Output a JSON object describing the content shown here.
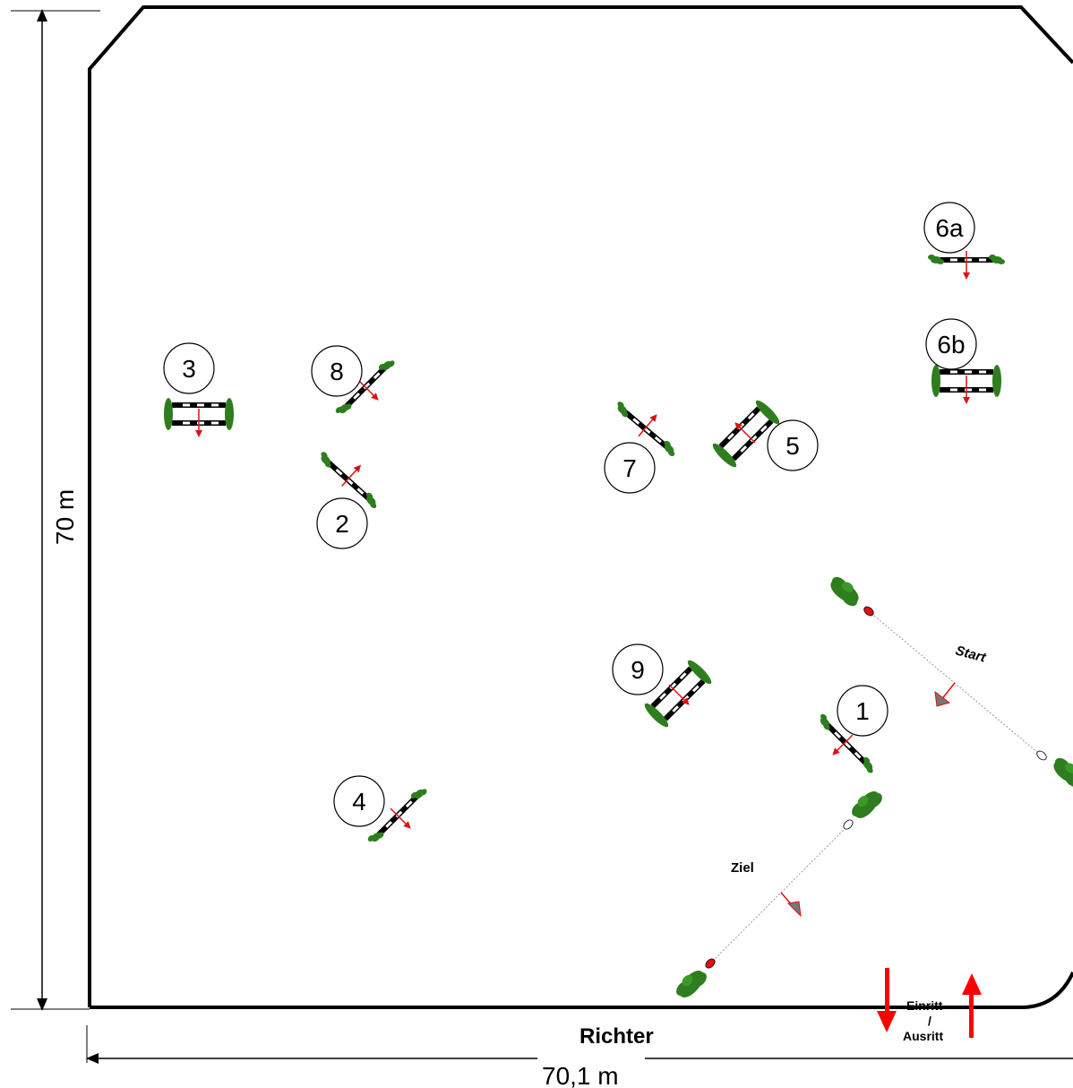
{
  "dimensions": {
    "height_label": "70 m",
    "width_label": "70,1 m"
  },
  "labels": {
    "judge": "Richter",
    "start": "Start",
    "finish": "Ziel",
    "entrance_line1": "Einritt",
    "entrance_line2": "/",
    "entrance_line3": "Ausritt"
  },
  "obstacles": [
    {
      "number": "1",
      "kind": "vertical"
    },
    {
      "number": "2",
      "kind": "vertical"
    },
    {
      "number": "3",
      "kind": "oxer"
    },
    {
      "number": "4",
      "kind": "vertical"
    },
    {
      "number": "5",
      "kind": "oxer"
    },
    {
      "number": "6a",
      "kind": "vertical"
    },
    {
      "number": "6b",
      "kind": "oxer"
    },
    {
      "number": "7",
      "kind": "vertical"
    },
    {
      "number": "8",
      "kind": "vertical"
    },
    {
      "number": "9",
      "kind": "oxer"
    }
  ],
  "colors": {
    "arena_line": "#000000",
    "bush": "#2e7d1f",
    "direction_arrow": "#e01010",
    "gate_arrow": "#ff0000"
  }
}
